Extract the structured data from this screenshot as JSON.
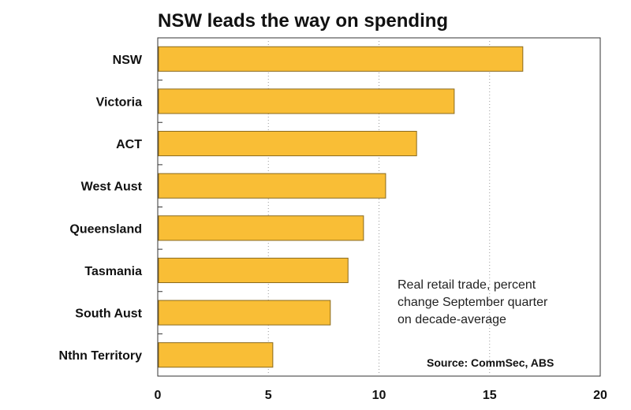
{
  "colors": {
    "bar_fill": "#F9BE36",
    "bar_stroke": "#8A6A1E",
    "grid": "#9A9A9A",
    "frame": "#333333"
  },
  "chart_data": {
    "type": "bar",
    "orientation": "horizontal",
    "title": "NSW leads the way on spending",
    "categories": [
      "NSW",
      "Victoria",
      "ACT",
      "West Aust",
      "Queensland",
      "Tasmania",
      "South Aust",
      "Nthn Territory"
    ],
    "values": [
      16.5,
      13.4,
      11.7,
      10.3,
      9.3,
      8.6,
      7.8,
      5.2
    ],
    "xlim": [
      0,
      20
    ],
    "xticks": [
      0,
      5,
      10,
      15,
      20
    ],
    "xtick_labels": [
      "0",
      "5",
      "10",
      "15",
      "20"
    ],
    "grid": "vertical dotted",
    "annotation": [
      "Real retail trade, percent",
      "change September quarter",
      "on decade-average"
    ],
    "source": "Source: CommSec, ABS"
  }
}
